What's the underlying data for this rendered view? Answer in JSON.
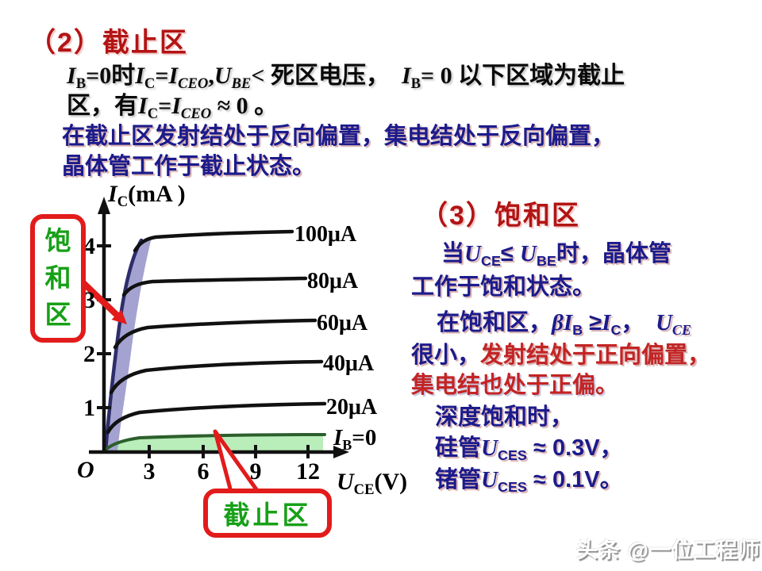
{
  "colors": {
    "title_red": "#b31414",
    "body_blue": "#1b1b8c",
    "accent_red": "#c32424",
    "callout_green": "#17a017",
    "callout_border": "#e21b1b",
    "saturation_band": "#a3a2d0",
    "cutoff_region": "#b9edb9",
    "curve_black": "#111111",
    "steep_navy": "#2e2d6b",
    "ib0_curve_green": "#2d5f2d"
  },
  "header": {
    "title": "（2）截止区",
    "line1": [
      {
        "t": "I",
        "c": "it"
      },
      {
        "t": "B",
        "c": "sb"
      },
      {
        "t": "=0时",
        "c": ""
      },
      {
        "t": "I",
        "c": "it"
      },
      {
        "t": "C",
        "c": "sb"
      },
      {
        "t": "=",
        "c": ""
      },
      {
        "t": "I",
        "c": "it"
      },
      {
        "t": "CEO",
        "c": "sb it"
      },
      {
        "t": ",",
        "c": ""
      },
      {
        "t": "U",
        "c": "it"
      },
      {
        "t": "BE",
        "c": "sb it"
      },
      {
        "t": "< 死区电压，　",
        "c": ""
      },
      {
        "t": "I",
        "c": "it"
      },
      {
        "t": "B",
        "c": "sb"
      },
      {
        "t": "= 0 以下区域为截止",
        "c": ""
      }
    ],
    "line2": [
      {
        "t": "区，有",
        "c": ""
      },
      {
        "t": "I",
        "c": "it"
      },
      {
        "t": "C",
        "c": "sb"
      },
      {
        "t": "=",
        "c": ""
      },
      {
        "t": "I",
        "c": "it"
      },
      {
        "t": "CEO",
        "c": "sb it"
      },
      {
        "t": " ≈ 0 。",
        "c": ""
      }
    ],
    "blue_line1": "在截止区发射结处于反向偏置，集电结处于反向偏置，",
    "blue_line2": "晶体管工作于截止状态。"
  },
  "section3": {
    "title": "（3）饱和区",
    "p1": [
      {
        "t": "当",
        "c": ""
      },
      {
        "t": "U",
        "c": "it"
      },
      {
        "t": "CE",
        "c": "sb"
      },
      {
        "t": "≤ ",
        "c": ""
      },
      {
        "t": "U",
        "c": "it"
      },
      {
        "t": "BE",
        "c": "sb"
      },
      {
        "t": "时，晶体管",
        "c": ""
      }
    ],
    "p2": "工作于饱和状态。",
    "p3": [
      {
        "t": "在饱和区，",
        "c": ""
      },
      {
        "t": "β",
        "c": "it"
      },
      {
        "t": "I",
        "c": "it"
      },
      {
        "t": "B",
        "c": "sb"
      },
      {
        "t": " ≥",
        "c": ""
      },
      {
        "t": "I",
        "c": "it"
      },
      {
        "t": "C",
        "c": "sb"
      },
      {
        "t": "，　",
        "c": ""
      },
      {
        "t": "U",
        "c": "it"
      },
      {
        "t": "CE",
        "c": "sb it"
      }
    ],
    "p4": [
      {
        "t": "很小，",
        "c": "blue"
      },
      {
        "t": "发射结处于正向偏置，",
        "c": "red"
      }
    ],
    "p5": "集电结也处于正偏。",
    "p6": "深度饱和时，",
    "p7": [
      {
        "t": "硅管",
        "c": ""
      },
      {
        "t": "U",
        "c": "it"
      },
      {
        "t": "CES",
        "c": "sb"
      },
      {
        "t": " ≈ 0.3V，",
        "c": ""
      }
    ],
    "p8": [
      {
        "t": "锗管",
        "c": ""
      },
      {
        "t": "U",
        "c": "it"
      },
      {
        "t": "CES",
        "c": "sb"
      },
      {
        "t": " ≈ 0.1V。",
        "c": ""
      }
    ]
  },
  "chart": {
    "y_axis_label": {
      "base": "I",
      "sub": "C",
      "rest": "(mA )"
    },
    "x_axis_label": {
      "base": "U",
      "sub": "CE",
      "rest": "(V)"
    },
    "origin": "O",
    "y_tick_labels": [
      "4",
      "3",
      "2",
      "1"
    ],
    "x_tick_labels": [
      "3",
      "6",
      "9",
      "12"
    ],
    "curve_labels": [
      "100μA",
      "80μA",
      "60μA",
      "40μA",
      "20μA"
    ],
    "ib0_label": {
      "base": "I",
      "sub": "B",
      "rest": "=0"
    },
    "saturation_callout": "饱和区",
    "cutoff_callout": "截止区"
  },
  "chart_data": {
    "type": "line",
    "title": "",
    "xlabel": "UCE(V)",
    "ylabel": "IC(mA)",
    "xlim": [
      0,
      13.5
    ],
    "ylim": [
      0,
      4.8
    ],
    "x_ticks": [
      3,
      6,
      9,
      12
    ],
    "y_ticks": [
      1,
      2,
      3,
      4
    ],
    "grid": false,
    "legend_position": "labels-right-of-curves",
    "series": [
      {
        "name": "IB=100μA",
        "points": [
          [
            0,
            0
          ],
          [
            0.4,
            2.2
          ],
          [
            0.8,
            3.9
          ],
          [
            1.5,
            4.15
          ],
          [
            6,
            4.22
          ],
          [
            12,
            4.3
          ]
        ]
      },
      {
        "name": "IB=80μA",
        "points": [
          [
            0,
            0
          ],
          [
            0.4,
            1.8
          ],
          [
            0.9,
            3.1
          ],
          [
            1.8,
            3.3
          ],
          [
            6,
            3.35
          ],
          [
            12,
            3.4
          ]
        ]
      },
      {
        "name": "IB=60μA",
        "points": [
          [
            0,
            0
          ],
          [
            0.4,
            1.4
          ],
          [
            0.9,
            2.3
          ],
          [
            2,
            2.5
          ],
          [
            6,
            2.55
          ],
          [
            12.5,
            2.6
          ]
        ]
      },
      {
        "name": "IB=40μA",
        "points": [
          [
            0,
            0
          ],
          [
            0.3,
            1.0
          ],
          [
            0.9,
            1.6
          ],
          [
            2,
            1.75
          ],
          [
            6,
            1.8
          ],
          [
            12.8,
            1.85
          ]
        ]
      },
      {
        "name": "IB=20μA",
        "points": [
          [
            0,
            0
          ],
          [
            0.3,
            0.5
          ],
          [
            0.9,
            0.85
          ],
          [
            2,
            0.95
          ],
          [
            6,
            1.0
          ],
          [
            13,
            1.05
          ]
        ]
      },
      {
        "name": "IB=0",
        "points": [
          [
            0,
            0
          ],
          [
            0.5,
            0.15
          ],
          [
            1.5,
            0.25
          ],
          [
            6,
            0.3
          ],
          [
            13,
            0.32
          ]
        ]
      }
    ],
    "regions": [
      {
        "name": "饱和区",
        "description": "shaded band along steep rise near UCE≈0",
        "color": "#a3a2d0"
      },
      {
        "name": "截止区",
        "description": "shaded strip under IB=0 curve along x-axis",
        "color": "#b9edb9"
      }
    ]
  },
  "footer": {
    "watermark": "头条 @一位工程师"
  }
}
